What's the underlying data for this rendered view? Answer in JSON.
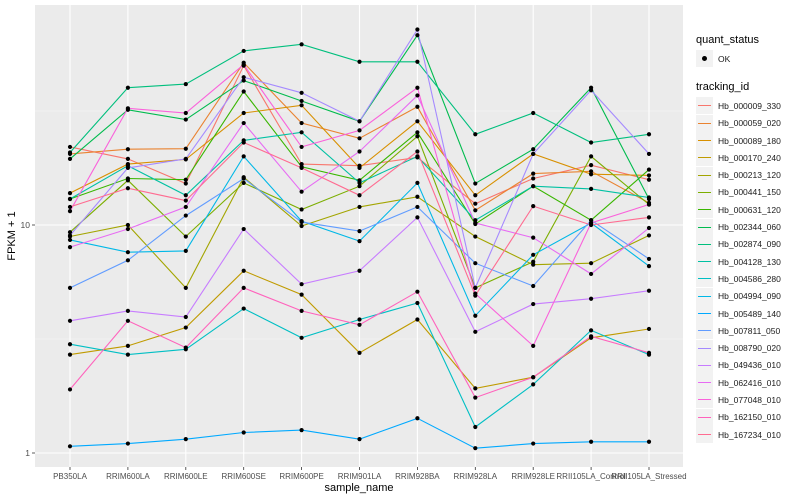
{
  "chart_data": {
    "type": "line",
    "title": "",
    "xlabel": "sample_name",
    "ylabel": "FPKM + 1",
    "yscale": "log10",
    "ylim": [
      0.86,
      100
    ],
    "yticks": [
      {
        "value": 1,
        "label": "1"
      },
      {
        "value": 10,
        "label": "10"
      }
    ],
    "categories": [
      "PB350LA",
      "RRIM600LA",
      "RRIM600LE",
      "RRIM600SE",
      "RRIM600PE",
      "RRIM901LA",
      "RRIM928BA",
      "RRIM928LA",
      "RRIM928LE",
      "RRII105LA_Control",
      "RRII105LA_Stressed"
    ],
    "grid": true,
    "legend_position": "right",
    "point_legend": {
      "title": "quant_status",
      "entries": [
        {
          "label": "OK"
        }
      ]
    },
    "color_legend_title": "tracking_id",
    "series": [
      {
        "name": "Hb_000009_330",
        "color": "#F8766D",
        "values": [
          22.0,
          19.5,
          15.2,
          50.0,
          18.5,
          18.2,
          19.8,
          12.4,
          16.0,
          18.3,
          15.8
        ]
      },
      {
        "name": "Hb_000059_020",
        "color": "#EA8331",
        "values": [
          20.5,
          21.5,
          21.6,
          51.5,
          28.0,
          24.0,
          33.0,
          11.6,
          16.8,
          17.2,
          12.5
        ]
      },
      {
        "name": "Hb_000089_180",
        "color": "#D89000",
        "values": [
          13.8,
          18.5,
          19.4,
          31.0,
          33.5,
          17.8,
          28.5,
          13.5,
          20.5,
          16.7,
          16.5
        ]
      },
      {
        "name": "Hb_000170_240",
        "color": "#C09B00",
        "values": [
          2.7,
          2.95,
          3.55,
          6.3,
          4.95,
          2.75,
          3.85,
          1.92,
          2.15,
          3.2,
          3.5
        ]
      },
      {
        "name": "Hb_000213_120",
        "color": "#A3A500",
        "values": [
          8.9,
          10.0,
          5.3,
          16.2,
          9.9,
          12.0,
          13.3,
          8.9,
          6.7,
          6.8,
          9.0
        ]
      },
      {
        "name": "Hb_000441_150",
        "color": "#7CAE00",
        "values": [
          9.3,
          15.7,
          8.9,
          15.3,
          11.7,
          14.8,
          24.5,
          5.3,
          6.9,
          20.0,
          12.3
        ]
      },
      {
        "name": "Hb_000631_120",
        "color": "#39B600",
        "values": [
          13.0,
          16.0,
          15.8,
          38.5,
          18.0,
          15.7,
          25.5,
          10.1,
          14.8,
          10.5,
          17.5
        ]
      },
      {
        "name": "Hb_002344_060",
        "color": "#00BB4E",
        "values": [
          19.5,
          32.0,
          29.0,
          43.0,
          35.0,
          28.5,
          68.0,
          15.2,
          21.5,
          40.0,
          13.0
        ]
      },
      {
        "name": "Hb_002874_090",
        "color": "#00BF7D",
        "values": [
          20.8,
          40.0,
          41.5,
          58.0,
          62.0,
          52.0,
          52.0,
          25.0,
          31.0,
          23.0,
          25.0
        ]
      },
      {
        "name": "Hb_004128_130",
        "color": "#00C1A3",
        "values": [
          13.0,
          18.2,
          13.5,
          23.5,
          25.5,
          15.3,
          20.0,
          10.5,
          14.8,
          14.4,
          13.2
        ]
      },
      {
        "name": "Hb_004586_280",
        "color": "#00BFC4",
        "values": [
          3.0,
          2.7,
          2.85,
          4.3,
          3.2,
          3.85,
          4.55,
          1.3,
          2.0,
          3.45,
          2.7
        ]
      },
      {
        "name": "Hb_004994_090",
        "color": "#00B8E7",
        "values": [
          8.6,
          7.6,
          7.7,
          20.0,
          10.4,
          8.5,
          15.3,
          4.0,
          7.4,
          10.2,
          6.6
        ]
      },
      {
        "name": "Hb_005489_140",
        "color": "#00A9FF",
        "values": [
          1.07,
          1.1,
          1.15,
          1.23,
          1.26,
          1.15,
          1.42,
          1.05,
          1.1,
          1.12,
          1.12
        ]
      },
      {
        "name": "Hb_007811_050",
        "color": "#619CFF",
        "values": [
          5.3,
          7.0,
          11.0,
          16.0,
          10.3,
          9.4,
          12.0,
          6.8,
          5.4,
          10.5,
          7.1
        ]
      },
      {
        "name": "Hb_008790_020",
        "color": "#A58AFF",
        "values": [
          9.0,
          17.8,
          19.5,
          44.5,
          38.0,
          28.5,
          72.0,
          5.3,
          20.5,
          39.0,
          20.5
        ]
      },
      {
        "name": "Hb_049436_010",
        "color": "#C77CFF",
        "values": [
          3.8,
          4.2,
          3.95,
          9.6,
          5.5,
          6.3,
          10.8,
          3.4,
          4.5,
          4.75,
          5.15
        ]
      },
      {
        "name": "Hb_062416_010",
        "color": "#E76BF3",
        "values": [
          8.0,
          9.6,
          12.0,
          28.0,
          14.0,
          21.0,
          37.0,
          10.2,
          8.8,
          6.1,
          9.7
        ]
      },
      {
        "name": "Hb_077048_010",
        "color": "#FA62DB",
        "values": [
          11.5,
          32.5,
          31.0,
          50.5,
          22.0,
          26.0,
          40.0,
          5.0,
          2.95,
          10.2,
          12.3
        ]
      },
      {
        "name": "Hb_162150_010",
        "color": "#FF62BC",
        "values": [
          1.9,
          3.8,
          2.9,
          5.3,
          4.2,
          3.65,
          5.1,
          1.75,
          2.15,
          3.25,
          2.75
        ]
      },
      {
        "name": "Hb_167234_010",
        "color": "#FF6C91",
        "values": [
          12.0,
          14.5,
          12.8,
          23.0,
          17.8,
          13.5,
          21.0,
          4.9,
          12.1,
          10.0,
          10.8
        ]
      }
    ]
  }
}
